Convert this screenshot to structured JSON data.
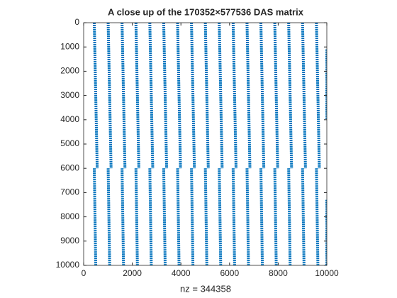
{
  "chart_data": {
    "type": "spy",
    "title": "A close up of the 170352×577536 DAS matrix",
    "x_label": "nz = 344358",
    "color": "#0072bd",
    "xlim": [
      0,
      10000
    ],
    "ylim": [
      0,
      10000
    ],
    "y_reversed": true,
    "xticks": [
      0,
      2000,
      4000,
      6000,
      8000,
      10000
    ],
    "yticks": [
      0,
      1000,
      2000,
      3000,
      4000,
      5000,
      6000,
      7000,
      8000,
      9000,
      10000
    ],
    "series": [
      {
        "x": [
          437,
          477,
          517,
          557,
          null,
          437,
          467,
          497
        ],
        "y": [
          0,
          2000,
          4000,
          6000,
          null,
          6000,
          8000,
          10000
        ]
      },
      {
        "x": [
          1008,
          1048,
          1088,
          1128,
          null,
          1008,
          1038,
          1068
        ],
        "y": [
          0,
          2000,
          4000,
          6000,
          null,
          6000,
          8000,
          10000
        ]
      },
      {
        "x": [
          1579,
          1619,
          1659,
          1699,
          null,
          1579,
          1609,
          1639
        ],
        "y": [
          0,
          2000,
          4000,
          6000,
          null,
          6000,
          8000,
          10000
        ]
      },
      {
        "x": [
          2150,
          2190,
          2230,
          2270,
          null,
          2150,
          2180,
          2210
        ],
        "y": [
          0,
          2000,
          4000,
          6000,
          null,
          6000,
          8000,
          10000
        ]
      },
      {
        "x": [
          2721,
          2761,
          2801,
          2841,
          null,
          2721,
          2751,
          2781
        ],
        "y": [
          0,
          2000,
          4000,
          6000,
          null,
          6000,
          8000,
          10000
        ]
      },
      {
        "x": [
          3292,
          3332,
          3372,
          3412,
          null,
          3292,
          3322,
          3352
        ],
        "y": [
          0,
          2000,
          4000,
          6000,
          null,
          6000,
          8000,
          10000
        ]
      },
      {
        "x": [
          3863,
          3903,
          3943,
          3983,
          null,
          3863,
          3893,
          3923
        ],
        "y": [
          0,
          2000,
          4000,
          6000,
          null,
          6000,
          8000,
          10000
        ]
      },
      {
        "x": [
          4434,
          4474,
          4514,
          4554,
          null,
          4434,
          4464,
          4494
        ],
        "y": [
          0,
          2000,
          4000,
          6000,
          null,
          6000,
          8000,
          10000
        ]
      },
      {
        "x": [
          5005,
          5045,
          5085,
          5125,
          null,
          5005,
          5035,
          5065
        ],
        "y": [
          0,
          2000,
          4000,
          6000,
          null,
          6000,
          8000,
          10000
        ]
      },
      {
        "x": [
          5576,
          5616,
          5656,
          5696,
          null,
          5576,
          5606,
          5636
        ],
        "y": [
          0,
          2000,
          4000,
          6000,
          null,
          6000,
          8000,
          10000
        ]
      },
      {
        "x": [
          6147,
          6187,
          6227,
          6267,
          null,
          6147,
          6177,
          6207
        ],
        "y": [
          0,
          2000,
          4000,
          6000,
          null,
          6000,
          8000,
          10000
        ]
      },
      {
        "x": [
          6718,
          6758,
          6798,
          6838,
          null,
          6718,
          6748,
          6778
        ],
        "y": [
          0,
          2000,
          4000,
          6000,
          null,
          6000,
          8000,
          10000
        ]
      },
      {
        "x": [
          7289,
          7329,
          7369,
          7409,
          null,
          7289,
          7319,
          7349
        ],
        "y": [
          0,
          2000,
          4000,
          6000,
          null,
          6000,
          8000,
          10000
        ]
      },
      {
        "x": [
          7860,
          7900,
          7940,
          7980,
          null,
          7860,
          7890,
          7920
        ],
        "y": [
          0,
          2000,
          4000,
          6000,
          null,
          6000,
          8000,
          10000
        ]
      },
      {
        "x": [
          8431,
          8471,
          8511,
          8551,
          null,
          8431,
          8461,
          8491
        ],
        "y": [
          0,
          2000,
          4000,
          6000,
          null,
          6000,
          8000,
          10000
        ]
      },
      {
        "x": [
          9002,
          9042,
          9082,
          9122,
          null,
          9002,
          9032,
          9062
        ],
        "y": [
          0,
          2000,
          4000,
          6000,
          null,
          6000,
          8000,
          10000
        ]
      },
      {
        "x": [
          9573,
          9613,
          9653,
          9693,
          null,
          9573,
          9603,
          9633
        ],
        "y": [
          0,
          2000,
          4000,
          6000,
          null,
          6000,
          8000,
          10000
        ]
      },
      {
        "x": [
          10000,
          10000,
          null,
          10000,
          10000
        ],
        "y": [
          1100,
          4000,
          null,
          7300,
          10000
        ]
      }
    ]
  }
}
